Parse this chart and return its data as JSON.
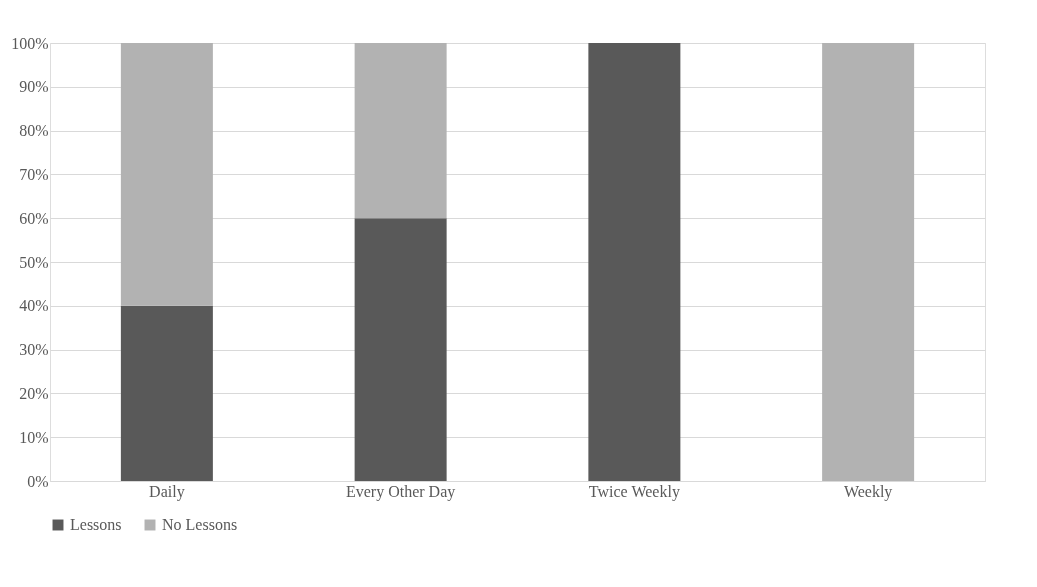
{
  "chart_data": {
    "type": "bar",
    "stacked": true,
    "categories": [
      "Daily",
      "Every Other Day",
      "Twice Weekly",
      "Weekly"
    ],
    "series": [
      {
        "name": "Lessons",
        "color": "#595959",
        "values": [
          40,
          60,
          100,
          0
        ]
      },
      {
        "name": "No Lessons",
        "color": "#b2b2b2",
        "values": [
          60,
          40,
          0,
          100
        ]
      }
    ],
    "ylim": [
      0,
      100
    ],
    "yticks": [
      {
        "value": 0,
        "label": "0%"
      },
      {
        "value": 10,
        "label": "10%"
      },
      {
        "value": 20,
        "label": "20%"
      },
      {
        "value": 30,
        "label": "30%"
      },
      {
        "value": 40,
        "label": "40%"
      },
      {
        "value": 50,
        "label": "50%"
      },
      {
        "value": 60,
        "label": "60%"
      },
      {
        "value": 70,
        "label": "70%"
      },
      {
        "value": 80,
        "label": "80%"
      },
      {
        "value": 90,
        "label": "90%"
      },
      {
        "value": 100,
        "label": "100%"
      }
    ],
    "grid": "y",
    "legend": "bottom"
  }
}
